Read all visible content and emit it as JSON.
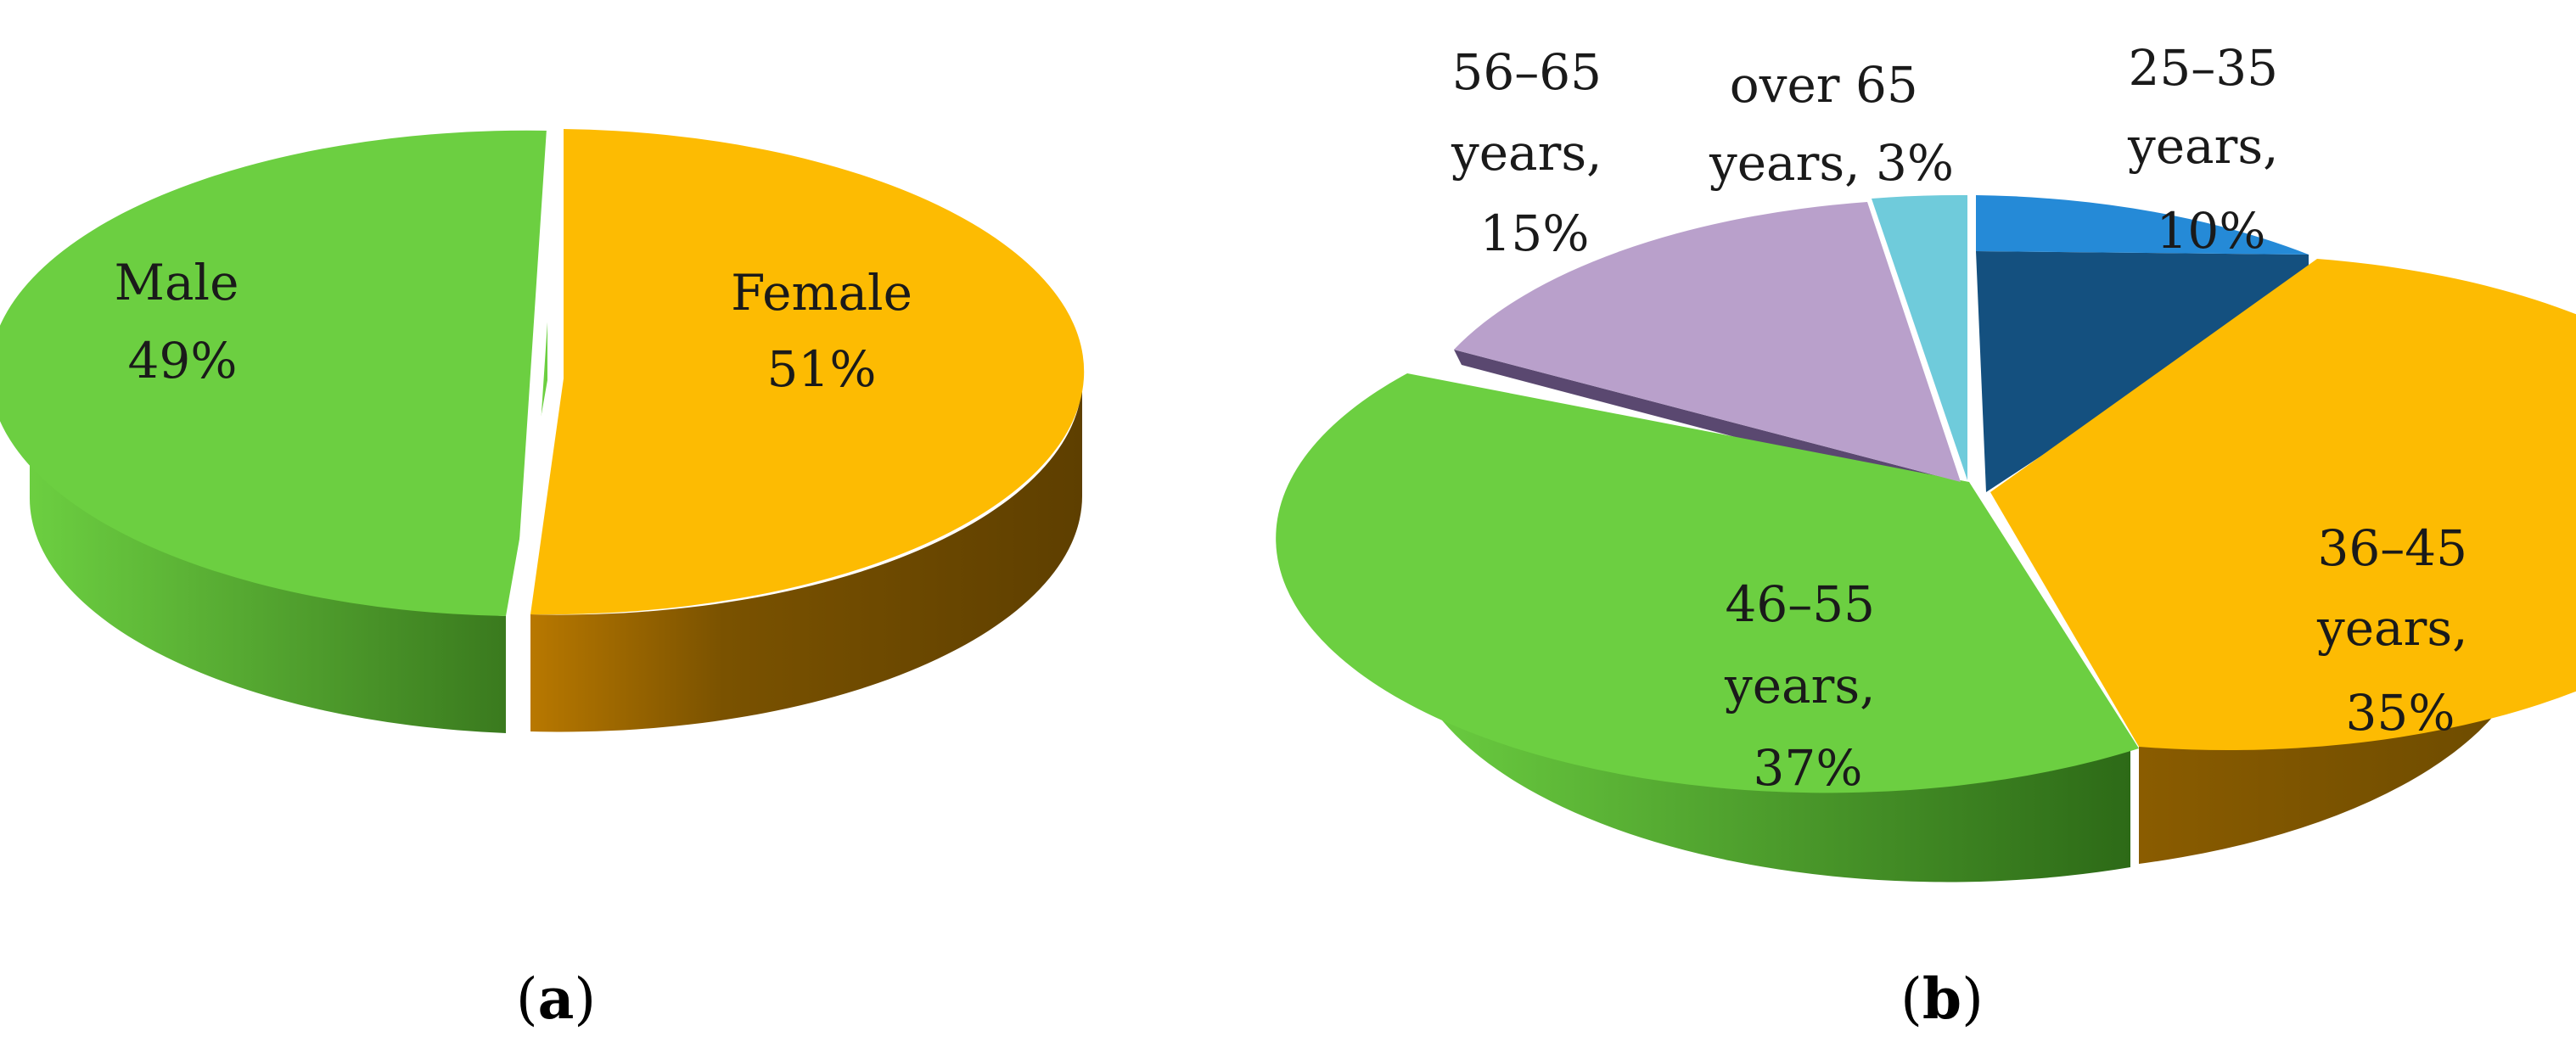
{
  "chart_data": [
    {
      "type": "pie",
      "panel_label": "a",
      "slices": [
        {
          "name": "Male",
          "value": 49,
          "value_label": "49%",
          "color": "#6ccf41",
          "side_dark": "#3c7c20"
        },
        {
          "name": "Female",
          "value": 51,
          "value_label": "51%",
          "color": "#fdbb02",
          "side_dark": "#6b4a00"
        }
      ]
    },
    {
      "type": "pie",
      "panel_label": "b",
      "slices": [
        {
          "name": "25–35 years,",
          "value": 10,
          "value_label": "10%",
          "color": "#258ad7",
          "side_dark": "#14507f"
        },
        {
          "name": "36–45 years,",
          "value": 35,
          "value_label": "35%",
          "color": "#fdbb02",
          "side_dark": "#6b4a00"
        },
        {
          "name": "46–55 years,",
          "value": 37,
          "value_label": "37%",
          "color": "#6ccf41",
          "side_dark": "#2d6a17"
        },
        {
          "name": "56–65 years,",
          "value": 15,
          "value_label": "15%",
          "color": "#b9a0cb",
          "side_dark": "#5a4870"
        },
        {
          "name": "over 65 years,",
          "value": 3,
          "value_label": "3%",
          "color": "#6fcbdb",
          "side_dark": "#2f7784"
        }
      ]
    }
  ]
}
